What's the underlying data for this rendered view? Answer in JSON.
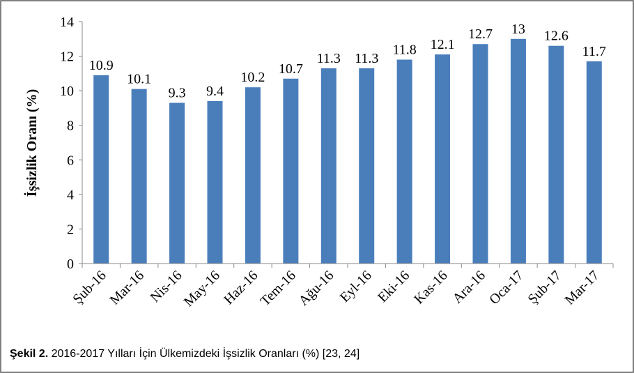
{
  "chart_data": {
    "type": "bar",
    "y_label": "İşsizlik Oranı (%)",
    "categories": [
      "Şub-16",
      "Mar-16",
      "Nis-16",
      "May-16",
      "Haz-16",
      "Tem-16",
      "Ağu-16",
      "Eyl-16",
      "Eki-16",
      "Kas-16",
      "Ara-16",
      "Oca-17",
      "Şub-17",
      "Mar-17"
    ],
    "values": [
      10.9,
      10.1,
      9.3,
      9.4,
      10.2,
      10.7,
      11.3,
      11.3,
      11.8,
      12.1,
      12.7,
      13,
      12.6,
      11.7
    ],
    "color": "#4a7ebb",
    "ylim": [
      0,
      14
    ],
    "yticks": [
      0,
      2,
      4,
      6,
      8,
      10,
      12,
      14
    ],
    "grid": false
  },
  "caption": {
    "label": "Şekil 2.",
    "text": "2016-2017 Yılları İçin Ülkemizdeki İşsizlik Oranları (%) [23, 24]"
  }
}
